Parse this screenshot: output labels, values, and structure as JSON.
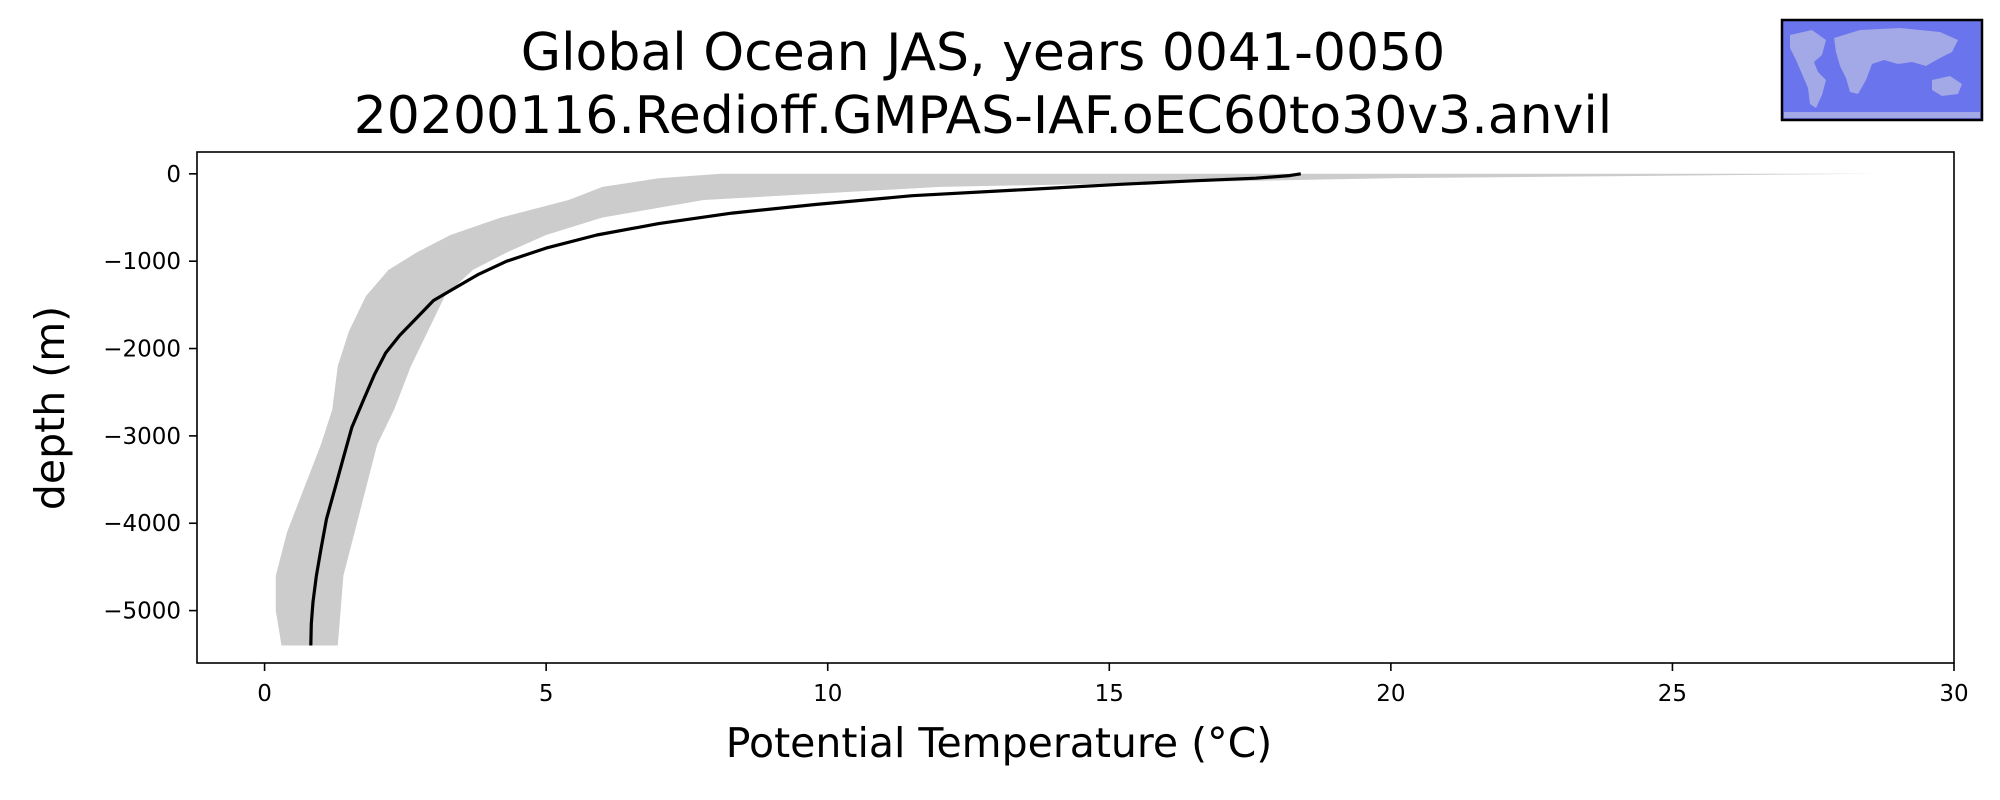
{
  "chart_data": {
    "type": "line",
    "title": "Global Ocean JAS, years 0041-0050",
    "subtitle": "20200116.Redioff.GMPAS-IAF.oEC60to30v3.anvil",
    "xlabel": "Potential Temperature (°C)",
    "ylabel": "depth (m)",
    "xlim": [
      -1.2,
      30
    ],
    "ylim": [
      -5600,
      250
    ],
    "xticks": [
      0,
      5,
      10,
      15,
      20,
      25,
      30
    ],
    "yticks": [
      0,
      -1000,
      -2000,
      -3000,
      -4000,
      -5000
    ],
    "grid": false,
    "legend": "none",
    "inset": "world-map",
    "colors": {
      "line": "#000000",
      "band": "#cccccc",
      "map_ocean": "#6a74ec",
      "map_land": "#a3a8e6",
      "frame": "#000000"
    },
    "series": [
      {
        "style": "line",
        "x": [
          18.4,
          18.2,
          17.6,
          16.5,
          15.2,
          13.5,
          11.5,
          9.8,
          8.3,
          7.0,
          5.9,
          5.0,
          4.3,
          3.8,
          3.4,
          3.0,
          2.7,
          2.4,
          2.15,
          1.95,
          1.75,
          1.55,
          1.4,
          1.25,
          1.1,
          1.0,
          0.92,
          0.86,
          0.83,
          0.82
        ],
        "y": [
          0,
          -20,
          -50,
          -80,
          -120,
          -180,
          -250,
          -350,
          -450,
          -570,
          -700,
          -850,
          -1000,
          -1150,
          -1300,
          -1450,
          -1650,
          -1850,
          -2050,
          -2300,
          -2600,
          -2900,
          -3250,
          -3600,
          -3950,
          -4300,
          -4600,
          -4900,
          -5150,
          -5400
        ]
      },
      {
        "style": "band",
        "x_low": [
          8.1,
          7.0,
          6.0,
          5.4,
          4.2,
          3.3,
          2.7,
          2.2,
          1.8,
          1.5,
          1.3,
          1.2,
          1.0,
          0.7,
          0.4,
          0.2,
          0.2,
          0.3
        ],
        "x_high": [
          28.6,
          20.0,
          12.0,
          7.8,
          6.0,
          5.0,
          4.3,
          3.7,
          3.2,
          2.9,
          2.6,
          2.3,
          2.0,
          1.8,
          1.6,
          1.4,
          1.35,
          1.3
        ],
        "y": [
          0,
          -50,
          -150,
          -300,
          -500,
          -700,
          -900,
          -1100,
          -1400,
          -1800,
          -2200,
          -2700,
          -3100,
          -3600,
          -4100,
          -4600,
          -5000,
          -5400
        ]
      }
    ]
  }
}
